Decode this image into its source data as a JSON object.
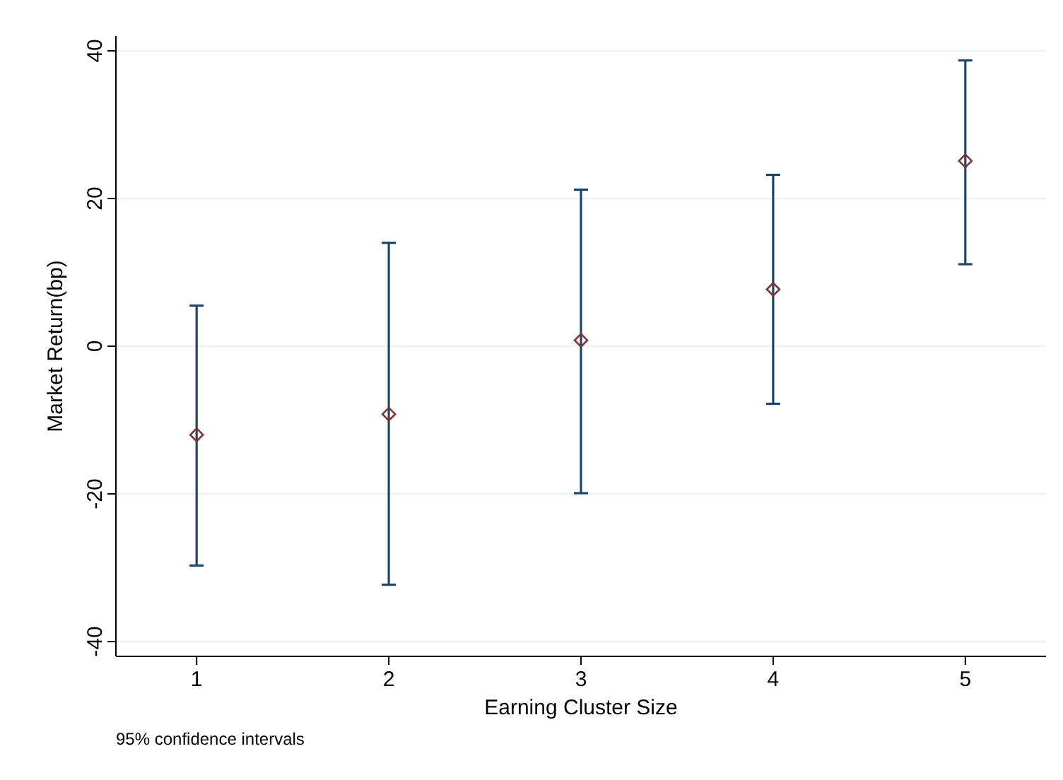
{
  "chart_data": {
    "type": "scatter",
    "xlabel": "Earning Cluster Size",
    "ylabel": "Market Return(bp)",
    "categories": [
      "1",
      "2",
      "3",
      "4",
      "5"
    ],
    "series": [
      {
        "color": "#8b2e2e",
        "values": [
          -12,
          -9.2,
          0.8,
          7.7,
          25.1
        ],
        "errors": [
          [
            -29.7,
            5.5
          ],
          [
            -32.3,
            14
          ],
          [
            -19.9,
            21.2
          ],
          [
            -7.8,
            23.2
          ],
          [
            11.1,
            38.7
          ]
        ]
      }
    ],
    "ylim": [
      -42,
      42
    ],
    "yticks": [
      -40,
      -20,
      0,
      20,
      40
    ],
    "grid": "y",
    "marker": "diamond",
    "annotations": [
      "95% confidence intervals"
    ]
  }
}
